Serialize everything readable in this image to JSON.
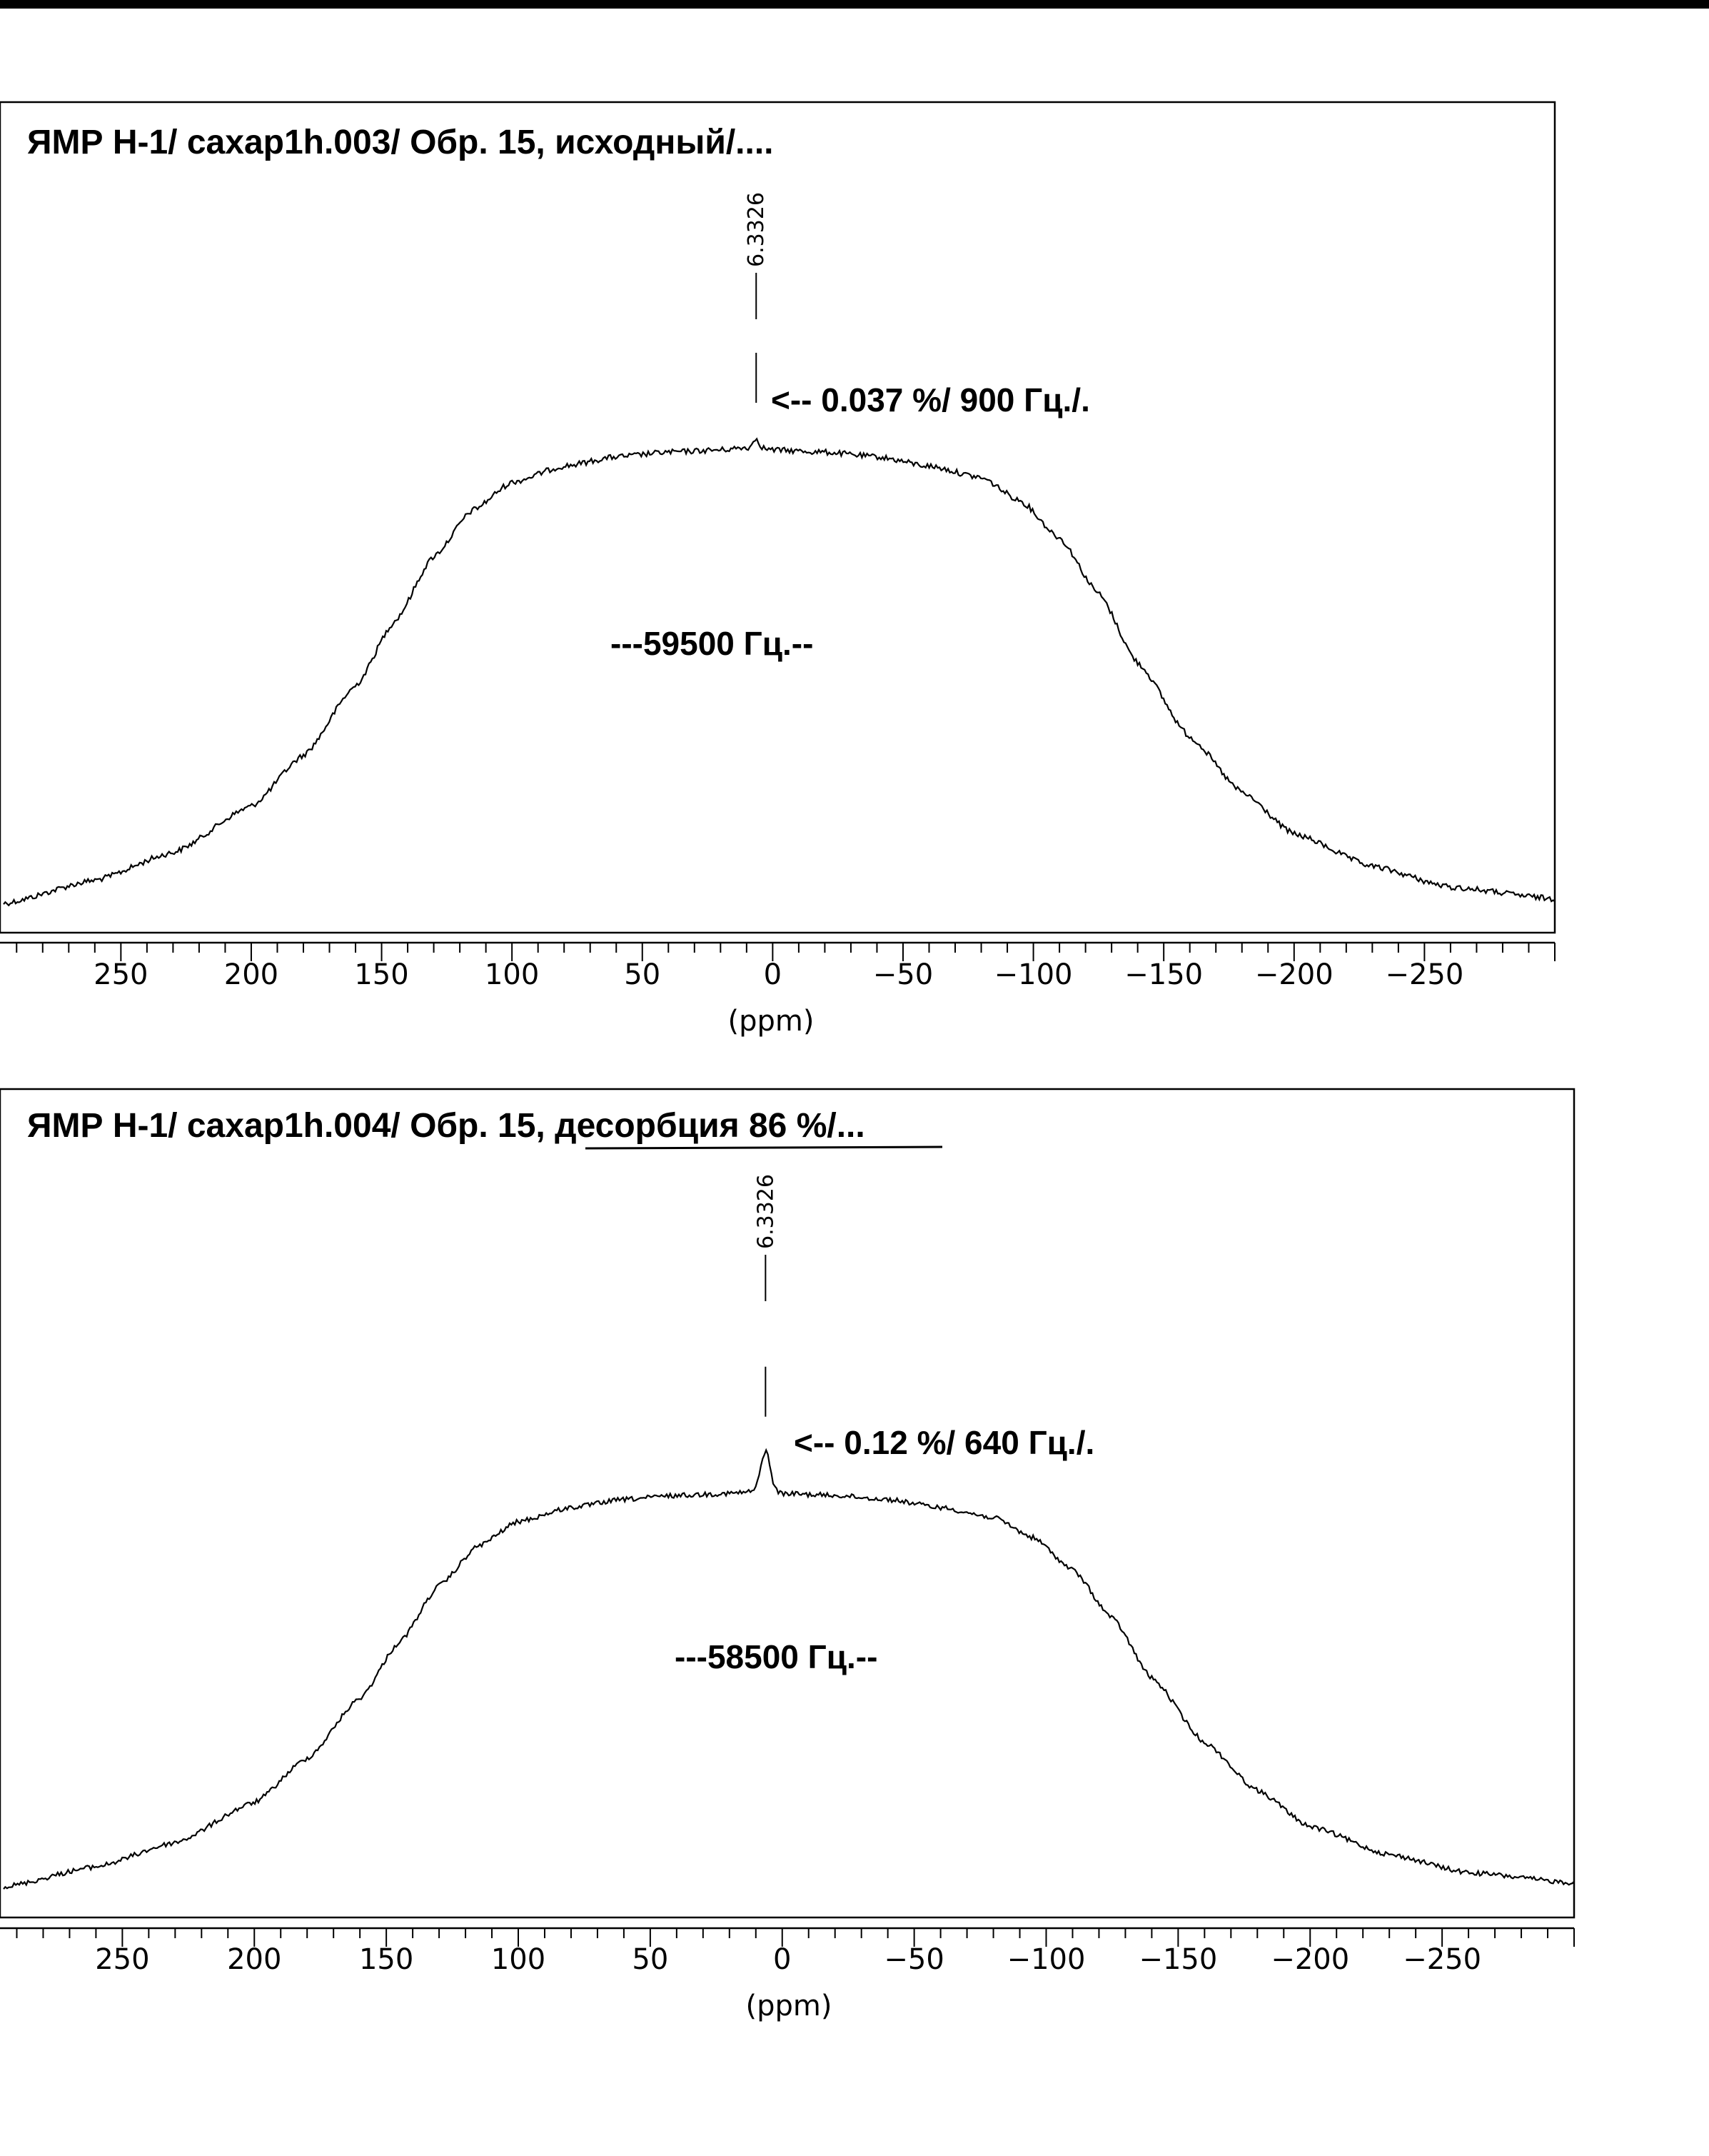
{
  "chart_data": [
    {
      "type": "line",
      "title": "ЯМР H-1/ caxap1h.003/ Обр. 15, исходный/....",
      "xlabel": "(ppm)",
      "ylabel": "",
      "xlim": [
        295,
        -300
      ],
      "x_reversed": true,
      "x_ticks": [
        250,
        200,
        150,
        100,
        50,
        0,
        -50,
        -100,
        -150,
        -200,
        -250
      ],
      "x_tick_labels": [
        "250",
        "200",
        "150",
        "100",
        "50",
        "0",
        "−50",
        "−100",
        "−150",
        "−200",
        "−250"
      ],
      "minor_tick_step": 10,
      "y_range": [
        0,
        1
      ],
      "grid": false,
      "series": [
        {
          "x": [
            295,
            260,
            230,
            200,
            180,
            160,
            145,
            130,
            115,
            100,
            80,
            60,
            40,
            20,
            10,
            5,
            0,
            -20,
            -40,
            -60,
            -80,
            -95,
            -110,
            -125,
            -140,
            -160,
            -180,
            -200,
            -230,
            -260,
            -300
          ],
          "y": [
            0.0,
            0.05,
            0.11,
            0.21,
            0.32,
            0.47,
            0.61,
            0.75,
            0.85,
            0.91,
            0.945,
            0.965,
            0.975,
            0.98,
            0.985,
            0.985,
            0.98,
            0.975,
            0.965,
            0.945,
            0.92,
            0.87,
            0.79,
            0.67,
            0.52,
            0.36,
            0.24,
            0.15,
            0.08,
            0.035,
            0.01
          ]
        }
      ],
      "peak": {
        "x": 6.3326,
        "height": 0.02,
        "width": 1.5
      },
      "peak_label": "6.3326",
      "annotations": [
        "<-- 0.037 %/ 900 Гц./.",
        "---59500 Гц.--"
      ]
    },
    {
      "type": "line",
      "title": "ЯМР H-1/ caxap1h.004/ Обр. 15, десорбция  86 %/...",
      "xlabel": "(ppm)",
      "ylabel": "",
      "xlim": [
        295,
        -300
      ],
      "x_reversed": true,
      "x_ticks": [
        250,
        200,
        150,
        100,
        50,
        0,
        -50,
        -100,
        -150,
        -200,
        -250
      ],
      "x_tick_labels": [
        "250",
        "200",
        "150",
        "100",
        "50",
        "0",
        "−50",
        "−100",
        "−150",
        "−200",
        "−250"
      ],
      "minor_tick_step": 10,
      "y_range": [
        0,
        1
      ],
      "grid": false,
      "series": [
        {
          "x": [
            295,
            260,
            230,
            200,
            180,
            160,
            145,
            130,
            115,
            100,
            80,
            60,
            40,
            20,
            10,
            5,
            0,
            -20,
            -40,
            -60,
            -80,
            -95,
            -110,
            -125,
            -140,
            -160,
            -180,
            -200,
            -230,
            -260,
            -300
          ],
          "y": [
            0.0,
            0.05,
            0.11,
            0.21,
            0.32,
            0.47,
            0.61,
            0.75,
            0.85,
            0.91,
            0.945,
            0.965,
            0.975,
            0.98,
            0.985,
            0.985,
            0.98,
            0.975,
            0.965,
            0.945,
            0.92,
            0.87,
            0.79,
            0.67,
            0.52,
            0.36,
            0.24,
            0.15,
            0.08,
            0.035,
            0.01
          ]
        }
      ],
      "peak": {
        "x": 6.3326,
        "height": 0.1,
        "width": 2.5
      },
      "peak_label": "6.3326",
      "annotations": [
        "<-- 0.12 %/ 640 Гц./.",
        "---58500 Гц.--"
      ]
    }
  ]
}
